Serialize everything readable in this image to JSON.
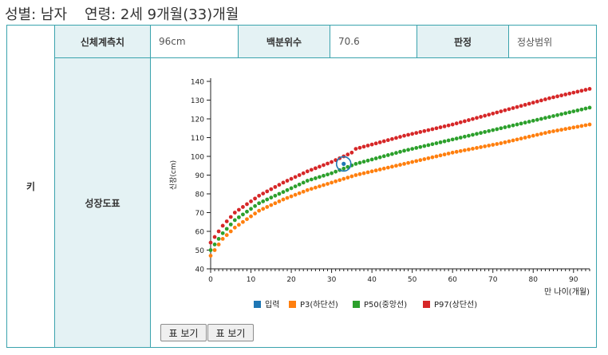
{
  "header": {
    "sex_label": "성별: 남자",
    "age_label": "연령: 2세 9개월(33)개월"
  },
  "table": {
    "row_label": "키",
    "measure_header": "신체계측치",
    "measure_value": "96cm",
    "percentile_header": "백분위수",
    "percentile_value": "70.6",
    "judgement_header": "판정",
    "judgement_value": "정상범위",
    "chart_header": "성장도표"
  },
  "buttons": {
    "table_view_1": "표 보기",
    "table_view_2": "표 보기"
  },
  "colors": {
    "border": "#3aa3ad",
    "header_bg": "#e4f2f4",
    "input": "#1f77b4",
    "p3": "#ff7f0e",
    "p50": "#2ca02c",
    "p97": "#d62728"
  },
  "chart_data": {
    "type": "scatter",
    "xlabel": "만 나이(개월)",
    "ylabel": "신장(cm)",
    "xlim": [
      0,
      94
    ],
    "ylim": [
      40,
      140
    ],
    "xticks": [
      0,
      10,
      20,
      30,
      40,
      50,
      60,
      70,
      80,
      90
    ],
    "yticks": [
      40,
      50,
      60,
      70,
      80,
      90,
      100,
      110,
      120,
      130,
      140
    ],
    "legend_position": "bottom",
    "input_point": {
      "name": "입력",
      "x": 33,
      "y": 96
    },
    "series": [
      {
        "name": "P3(하단선)",
        "color": "#ff7f0e",
        "x_start": 0,
        "x_end": 94,
        "anchors": [
          [
            0,
            47
          ],
          [
            3,
            56
          ],
          [
            6,
            62
          ],
          [
            12,
            71
          ],
          [
            18,
            77
          ],
          [
            24,
            82
          ],
          [
            30,
            86
          ],
          [
            36,
            90
          ],
          [
            48,
            96
          ],
          [
            60,
            102
          ],
          [
            72,
            107
          ],
          [
            84,
            113
          ],
          [
            94,
            117
          ]
        ]
      },
      {
        "name": "P50(중앙선)",
        "color": "#2ca02c",
        "x_start": 0,
        "x_end": 94,
        "anchors": [
          [
            0,
            50
          ],
          [
            3,
            59
          ],
          [
            6,
            66
          ],
          [
            12,
            75
          ],
          [
            18,
            81
          ],
          [
            24,
            87
          ],
          [
            30,
            91
          ],
          [
            36,
            96
          ],
          [
            48,
            103
          ],
          [
            60,
            109
          ],
          [
            72,
            115
          ],
          [
            84,
            121
          ],
          [
            94,
            126
          ]
        ]
      },
      {
        "name": "P97(상단선)",
        "color": "#d62728",
        "x_start": 0,
        "x_end": 94,
        "anchors": [
          [
            0,
            54
          ],
          [
            3,
            63
          ],
          [
            6,
            70
          ],
          [
            12,
            79
          ],
          [
            18,
            86
          ],
          [
            24,
            92
          ],
          [
            30,
            97
          ],
          [
            35,
            102
          ],
          [
            36,
            104
          ],
          [
            48,
            111
          ],
          [
            60,
            117
          ],
          [
            72,
            124
          ],
          [
            84,
            131
          ],
          [
            94,
            136
          ]
        ]
      }
    ]
  }
}
